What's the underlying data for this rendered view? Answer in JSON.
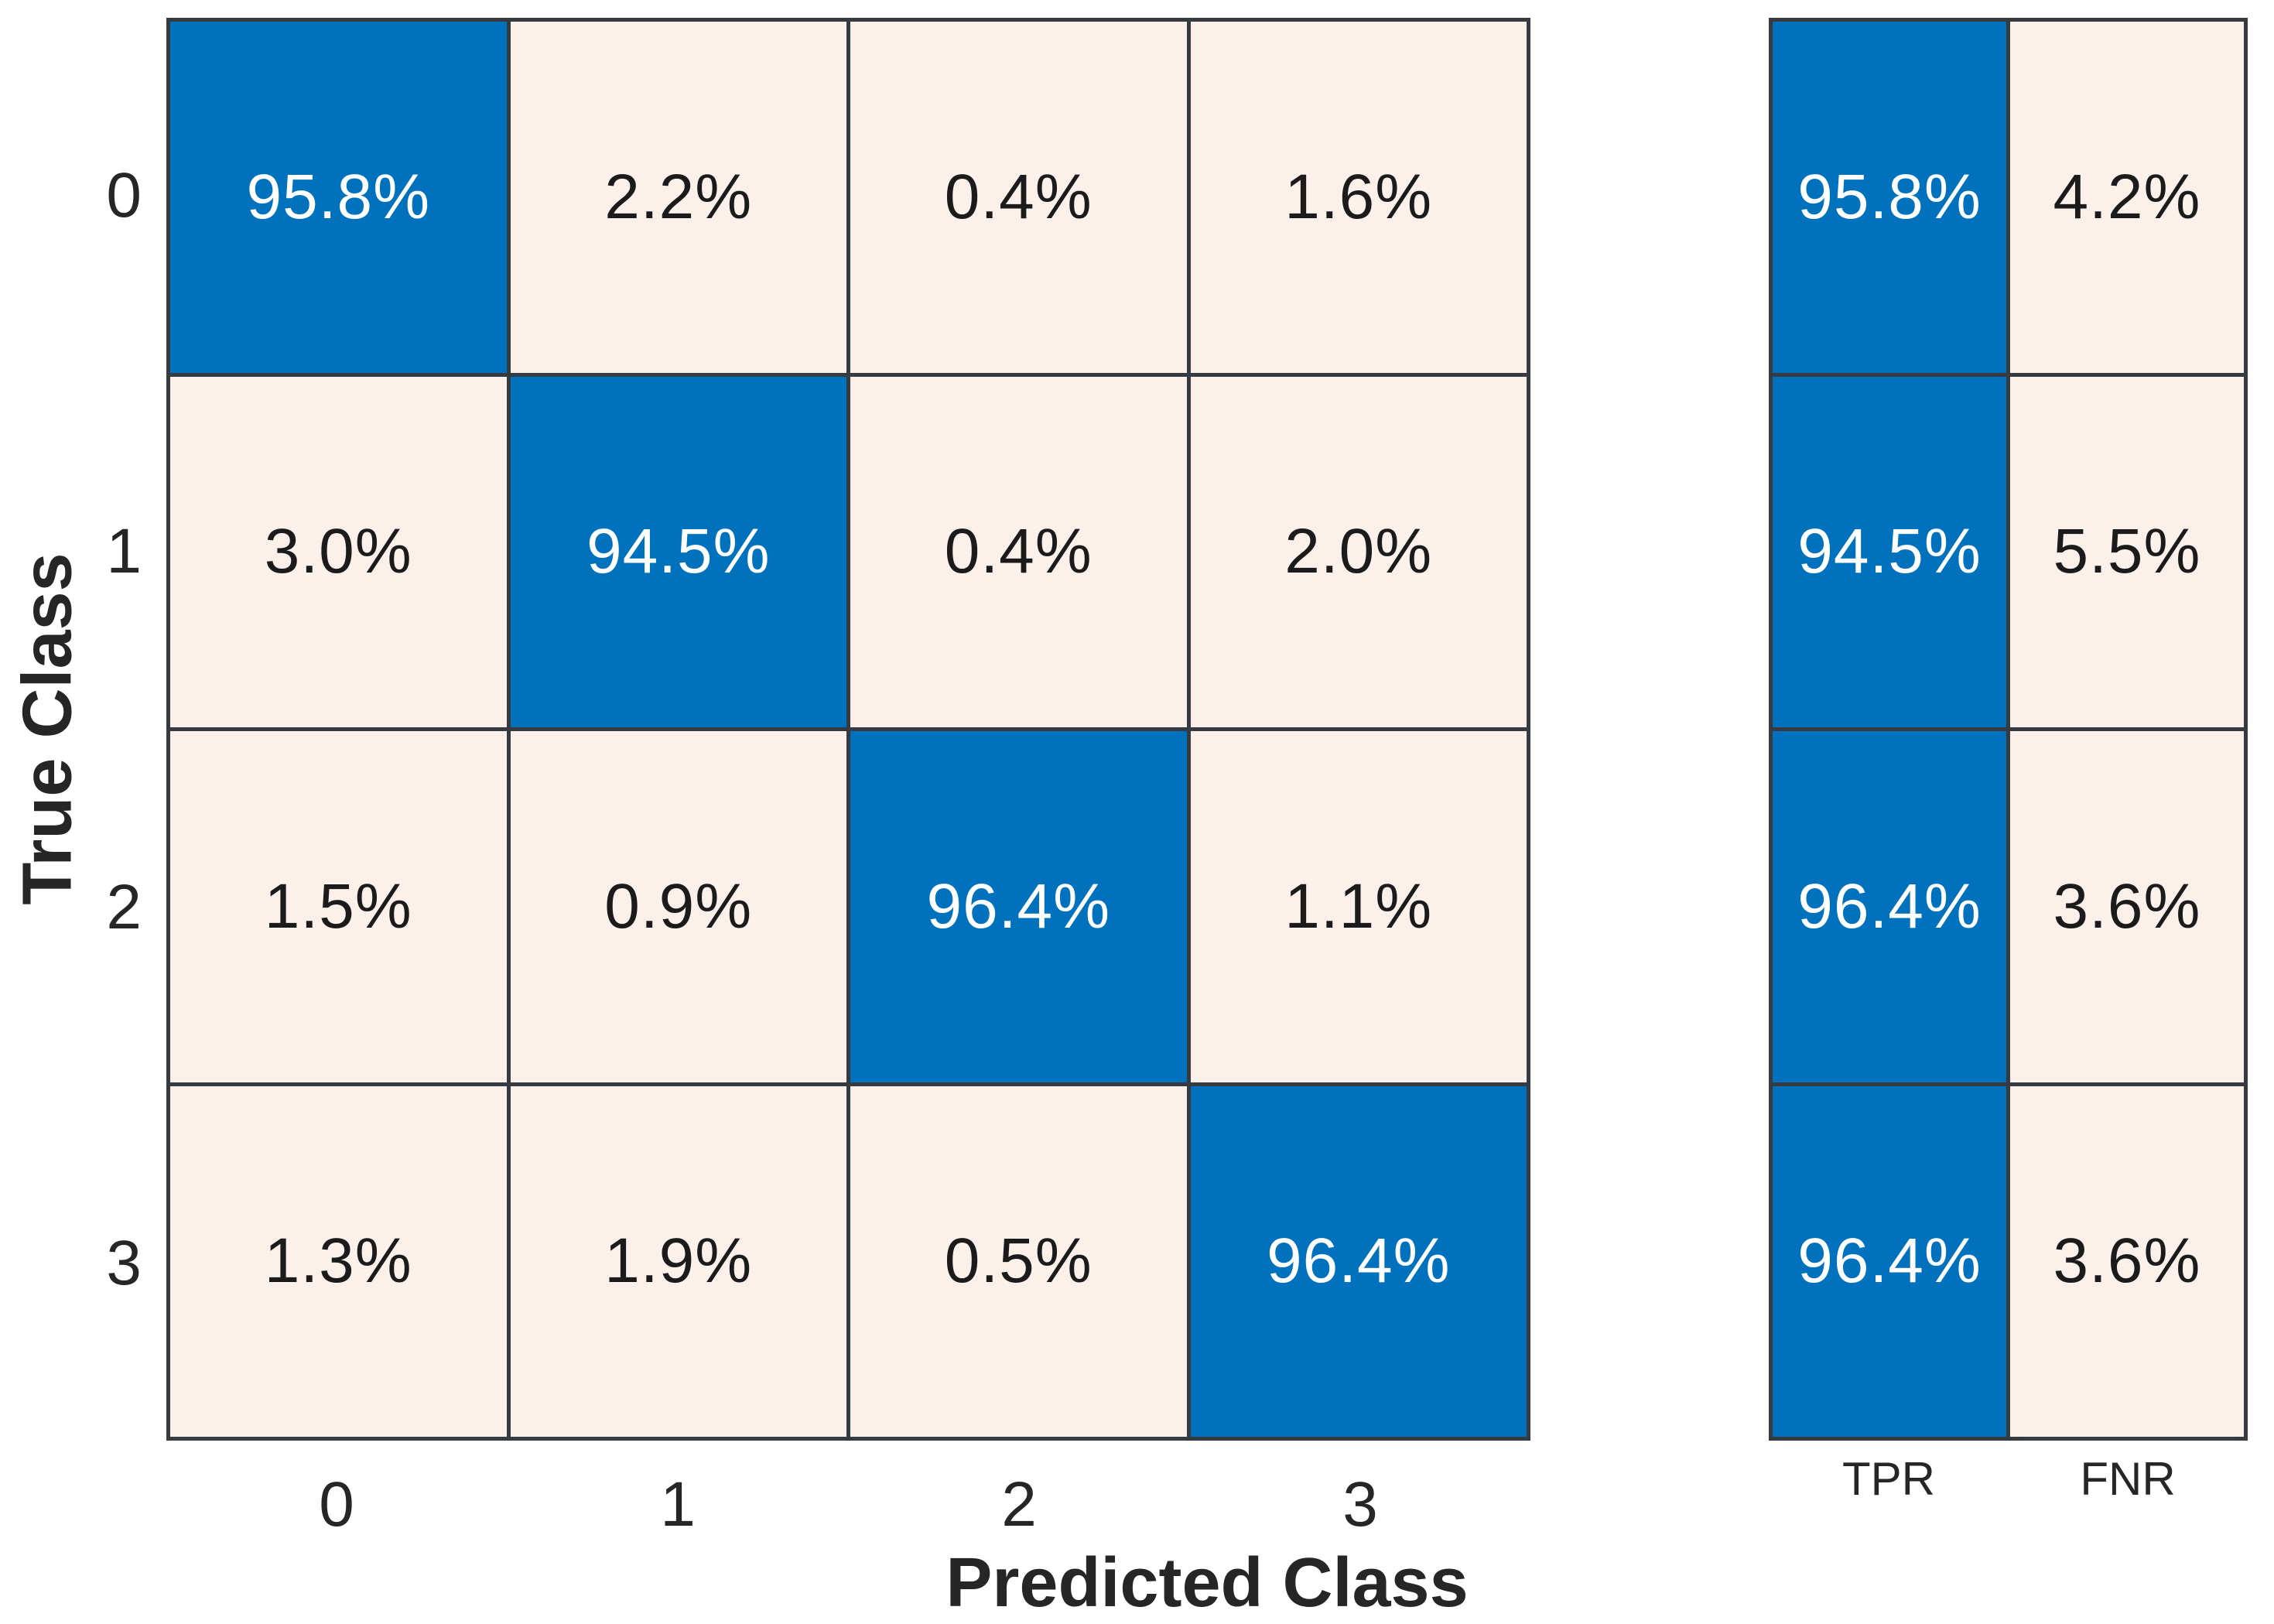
{
  "chart_data": {
    "type": "heatmap",
    "subtype": "confusion-matrix",
    "title": "",
    "xlabel": "Predicted Class",
    "ylabel": "True Class",
    "classes": [
      "0",
      "1",
      "2",
      "3"
    ],
    "matrix_percent": [
      [
        95.8,
        2.2,
        0.4,
        1.6
      ],
      [
        3.0,
        94.5,
        0.4,
        2.0
      ],
      [
        1.5,
        0.9,
        96.4,
        1.1
      ],
      [
        1.3,
        1.9,
        0.5,
        96.4
      ]
    ],
    "cell_label_format": "percent-one-decimal",
    "summary_columns": [
      "TPR",
      "FNR"
    ],
    "tpr_percent": [
      95.8,
      94.5,
      96.4,
      96.4
    ],
    "fnr_percent": [
      4.2,
      5.5,
      3.6,
      3.6
    ],
    "layout": {
      "grid_on": true,
      "summary_panel_position": "right",
      "diagonal_highlighted": true
    },
    "colors": {
      "diagonal": "#0072BD",
      "off_diagonal": "#FBF0EA",
      "grid_line": "#363B41",
      "text_on_diagonal": "#FFFFFF",
      "text_on_off_diagonal": "#1B1B1B",
      "axis_text": "#262626",
      "background": "#FFFFFF"
    }
  }
}
